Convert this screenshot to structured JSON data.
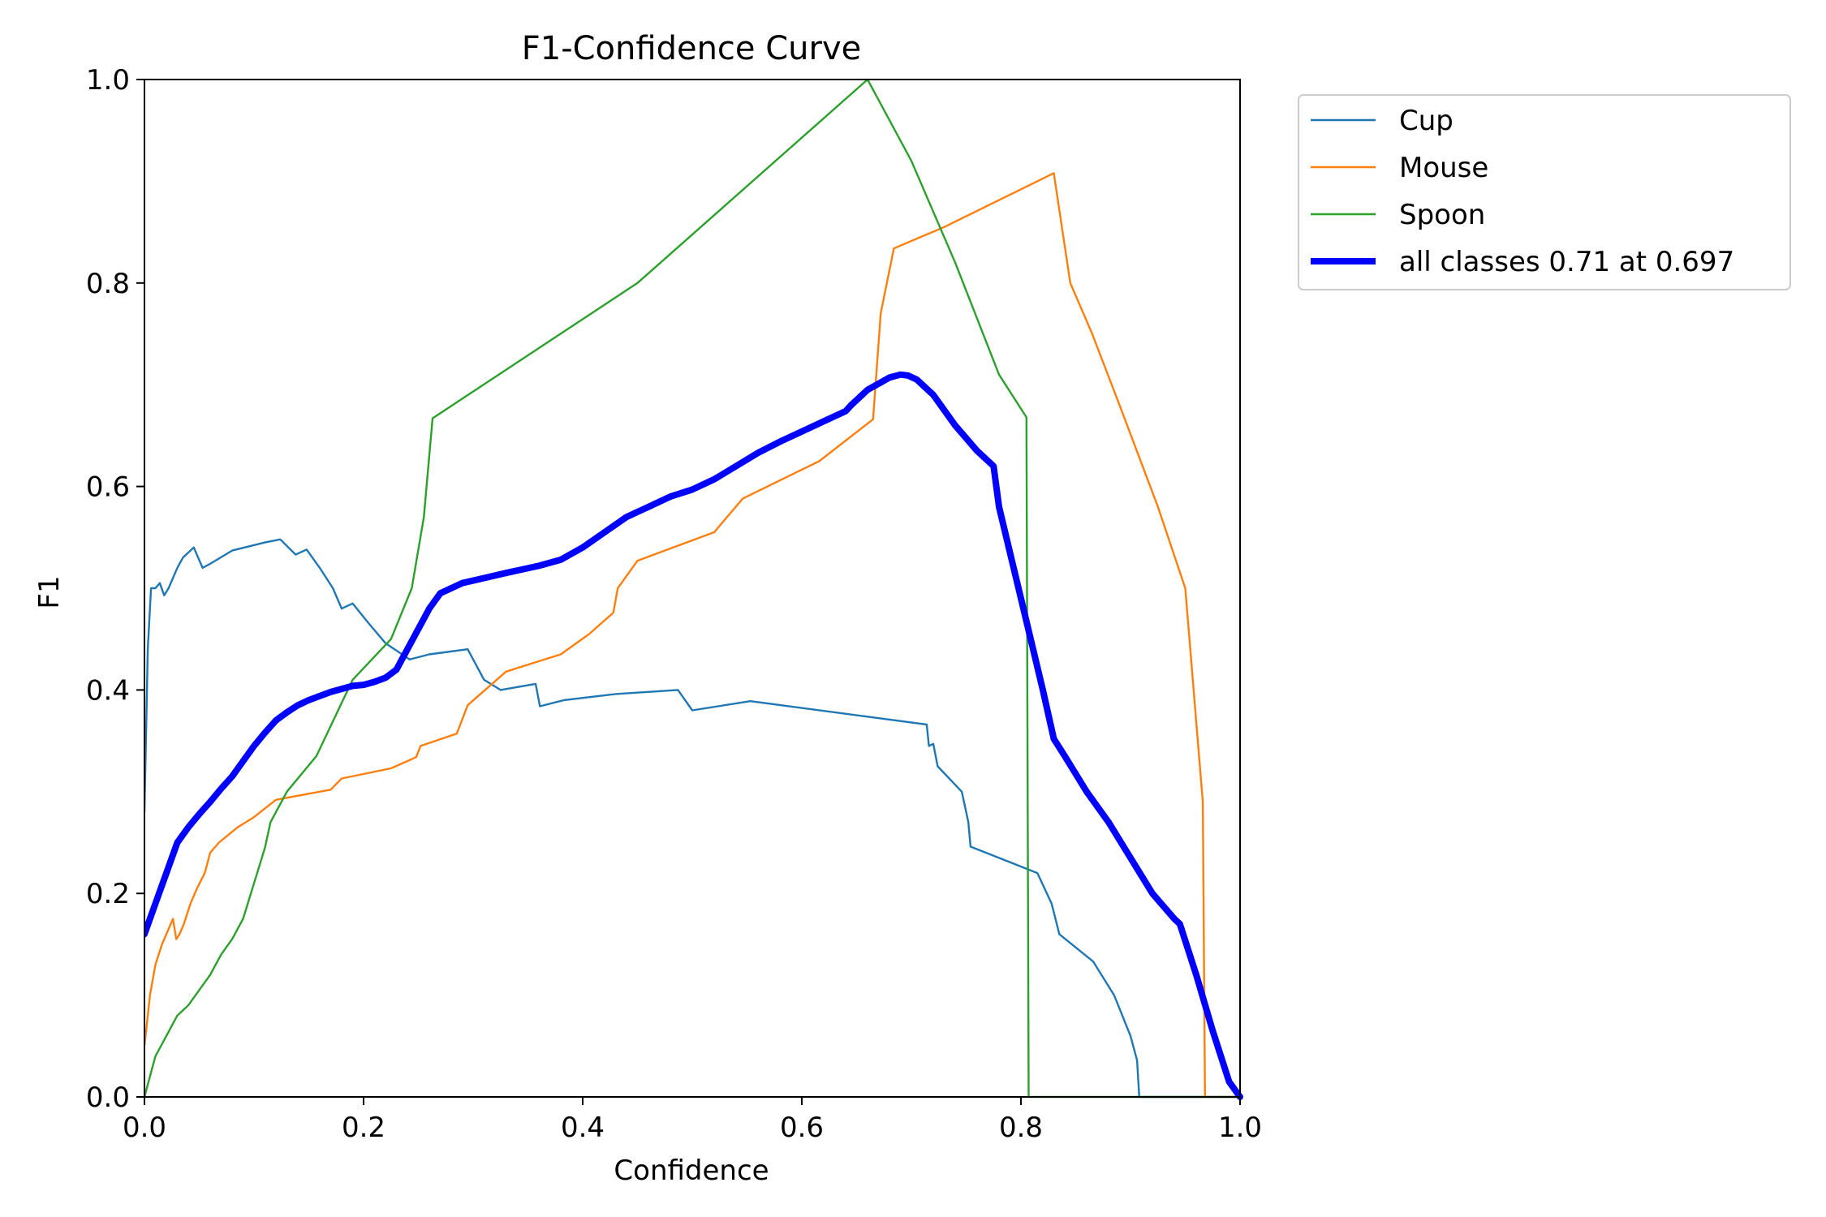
{
  "chart_data": {
    "type": "line",
    "title": "F1-Confidence Curve",
    "xlabel": "Confidence",
    "ylabel": "F1",
    "xlim": [
      0,
      1
    ],
    "ylim": [
      0,
      1
    ],
    "xticks": [
      "0.0",
      "0.2",
      "0.4",
      "0.6",
      "0.8",
      "1.0"
    ],
    "yticks": [
      "0.0",
      "0.2",
      "0.4",
      "0.6",
      "0.8",
      "1.0"
    ],
    "grid": false,
    "legend_position": "outside-top-right",
    "series": [
      {
        "name": "Cup",
        "color": "#1f77b4",
        "width": "thin",
        "x": [
          0.0,
          0.003,
          0.006,
          0.01,
          0.014,
          0.018,
          0.022,
          0.03,
          0.035,
          0.045,
          0.053,
          0.06,
          0.08,
          0.11,
          0.124,
          0.138,
          0.148,
          0.16,
          0.172,
          0.18,
          0.19,
          0.205,
          0.22,
          0.242,
          0.26,
          0.295,
          0.31,
          0.325,
          0.357,
          0.361,
          0.383,
          0.43,
          0.487,
          0.5,
          0.553,
          0.714,
          0.716,
          0.72,
          0.724,
          0.746,
          0.752,
          0.754,
          0.815,
          0.828,
          0.835,
          0.866,
          0.885,
          0.9,
          0.906,
          0.908,
          1.0
        ],
        "y": [
          0.28,
          0.44,
          0.5,
          0.5,
          0.505,
          0.493,
          0.5,
          0.52,
          0.53,
          0.54,
          0.52,
          0.524,
          0.537,
          0.545,
          0.548,
          0.533,
          0.538,
          0.52,
          0.5,
          0.48,
          0.485,
          0.465,
          0.446,
          0.43,
          0.435,
          0.44,
          0.41,
          0.4,
          0.406,
          0.384,
          0.39,
          0.396,
          0.4,
          0.38,
          0.389,
          0.366,
          0.345,
          0.347,
          0.325,
          0.3,
          0.27,
          0.246,
          0.22,
          0.19,
          0.16,
          0.133,
          0.1,
          0.06,
          0.036,
          0.0,
          0.0
        ]
      },
      {
        "name": "Mouse",
        "color": "#ff7f0e",
        "width": "thin",
        "x": [
          0.0,
          0.005,
          0.01,
          0.016,
          0.022,
          0.026,
          0.029,
          0.032,
          0.036,
          0.042,
          0.048,
          0.055,
          0.06,
          0.068,
          0.085,
          0.1,
          0.12,
          0.17,
          0.18,
          0.225,
          0.248,
          0.252,
          0.285,
          0.295,
          0.33,
          0.38,
          0.406,
          0.428,
          0.432,
          0.45,
          0.52,
          0.546,
          0.616,
          0.665,
          0.672,
          0.684,
          0.73,
          0.83,
          0.845,
          0.865,
          0.89,
          0.925,
          0.95,
          0.966,
          0.968,
          1.0
        ],
        "y": [
          0.05,
          0.1,
          0.13,
          0.15,
          0.165,
          0.175,
          0.155,
          0.16,
          0.17,
          0.19,
          0.205,
          0.22,
          0.24,
          0.25,
          0.265,
          0.275,
          0.292,
          0.302,
          0.313,
          0.323,
          0.334,
          0.345,
          0.357,
          0.385,
          0.418,
          0.435,
          0.455,
          0.476,
          0.5,
          0.527,
          0.555,
          0.588,
          0.625,
          0.666,
          0.77,
          0.834,
          0.855,
          0.908,
          0.8,
          0.75,
          0.68,
          0.58,
          0.5,
          0.29,
          0.0,
          0.0
        ]
      },
      {
        "name": "Spoon",
        "color": "#2ca02c",
        "width": "thin",
        "x": [
          0.0,
          0.01,
          0.02,
          0.03,
          0.04,
          0.05,
          0.06,
          0.07,
          0.08,
          0.09,
          0.1,
          0.11,
          0.115,
          0.13,
          0.157,
          0.19,
          0.225,
          0.244,
          0.255,
          0.263,
          0.45,
          0.66,
          0.7,
          0.74,
          0.78,
          0.805,
          0.807,
          1.0
        ],
        "y": [
          0.0,
          0.04,
          0.06,
          0.08,
          0.09,
          0.105,
          0.12,
          0.14,
          0.155,
          0.175,
          0.21,
          0.245,
          0.27,
          0.3,
          0.335,
          0.41,
          0.45,
          0.5,
          0.57,
          0.667,
          0.8,
          1.0,
          0.92,
          0.82,
          0.71,
          0.668,
          0.0,
          0.0
        ]
      },
      {
        "name": "all classes 0.71 at 0.697",
        "color": "#0000ff",
        "width": "thick",
        "x": [
          0.0,
          0.01,
          0.02,
          0.03,
          0.04,
          0.05,
          0.06,
          0.07,
          0.08,
          0.09,
          0.1,
          0.11,
          0.12,
          0.13,
          0.14,
          0.15,
          0.16,
          0.17,
          0.18,
          0.19,
          0.2,
          0.21,
          0.22,
          0.23,
          0.24,
          0.25,
          0.26,
          0.27,
          0.28,
          0.29,
          0.31,
          0.33,
          0.36,
          0.38,
          0.4,
          0.42,
          0.44,
          0.46,
          0.48,
          0.5,
          0.52,
          0.54,
          0.56,
          0.58,
          0.6,
          0.62,
          0.64,
          0.645,
          0.66,
          0.68,
          0.69,
          0.697,
          0.705,
          0.72,
          0.74,
          0.76,
          0.775,
          0.78,
          0.8,
          0.82,
          0.83,
          0.84,
          0.86,
          0.88,
          0.9,
          0.92,
          0.94,
          0.945,
          0.96,
          0.975,
          0.99,
          1.0
        ],
        "y": [
          0.16,
          0.19,
          0.22,
          0.25,
          0.265,
          0.278,
          0.29,
          0.303,
          0.315,
          0.33,
          0.345,
          0.358,
          0.37,
          0.378,
          0.385,
          0.39,
          0.394,
          0.398,
          0.401,
          0.404,
          0.405,
          0.408,
          0.412,
          0.42,
          0.44,
          0.46,
          0.48,
          0.495,
          0.5,
          0.505,
          0.51,
          0.515,
          0.522,
          0.528,
          0.54,
          0.555,
          0.57,
          0.58,
          0.59,
          0.597,
          0.607,
          0.62,
          0.633,
          0.644,
          0.654,
          0.664,
          0.674,
          0.68,
          0.695,
          0.707,
          0.71,
          0.709,
          0.705,
          0.69,
          0.66,
          0.635,
          0.62,
          0.58,
          0.49,
          0.4,
          0.352,
          0.335,
          0.3,
          0.27,
          0.235,
          0.2,
          0.175,
          0.17,
          0.12,
          0.065,
          0.015,
          0.0
        ]
      }
    ]
  }
}
